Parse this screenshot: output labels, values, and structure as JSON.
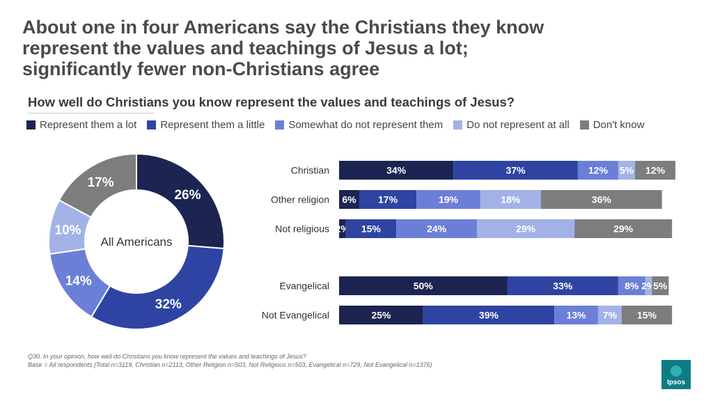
{
  "headline": {
    "line1": "About one in four Americans say the Christians they know",
    "line2": "represent the values and teachings of Jesus a lot;",
    "line3": "significantly fewer non-Christians agree"
  },
  "subtitle": "How well do Christians you know represent the values and teachings of Jesus?",
  "colors": {
    "a_lot": "#1c2452",
    "a_little": "#2f44a2",
    "somewhat_not": "#6b7fd7",
    "not_at_all": "#a3b2e6",
    "dont_know": "#7d7d7d"
  },
  "chart_data": [
    {
      "type": "pie",
      "title": "All Americans",
      "categories": [
        "Represent them a lot",
        "Represent them a little",
        "Somewhat do not represent them",
        "Do not represent at all",
        "Don't know"
      ],
      "values": [
        26,
        32,
        14,
        10,
        17
      ],
      "value_labels": [
        "26%",
        "32%",
        "14%",
        "10%",
        "17%"
      ],
      "legend": "top"
    },
    {
      "type": "bar",
      "orientation": "horizontal",
      "stacked": true,
      "categories": [
        "Christian",
        "Other religion",
        "Not religious",
        "Evangelical",
        "Not Evangelical"
      ],
      "series": [
        {
          "name": "Represent them a lot",
          "values": [
            34,
            6,
            2,
            50,
            25
          ],
          "labels": [
            "34%",
            "6%",
            "2%",
            "50%",
            "25%"
          ]
        },
        {
          "name": "Represent them a little",
          "values": [
            37,
            17,
            15,
            33,
            39
          ],
          "labels": [
            "37%",
            "17%",
            "15%",
            "33%",
            "39%"
          ]
        },
        {
          "name": "Somewhat do not represent them",
          "values": [
            12,
            19,
            24,
            8,
            13
          ],
          "labels": [
            "12%",
            "19%",
            "24%",
            "8%",
            "13%"
          ]
        },
        {
          "name": "Do not represent at all",
          "values": [
            5,
            18,
            29,
            2,
            7
          ],
          "labels": [
            "5%",
            "18%",
            "29%",
            "2%",
            "7%"
          ]
        },
        {
          "name": "Don't know",
          "values": [
            12,
            36,
            29,
            5,
            15
          ],
          "labels": [
            "12%",
            "36%",
            "29%",
            "5%",
            "15%"
          ]
        }
      ],
      "xlim": [
        0,
        100
      ]
    }
  ],
  "footnote": {
    "question": "Q30. In your opinion, how well do Christians you know represent the values and teachings of Jesus?",
    "base": "Base =  All respondents (Total n=3119, Christian n=2113, Other Religion n=503, Not Religious n=503, Evangelical n=729, Not Evangelical n=1376)"
  },
  "logo": {
    "text": "Ipsos"
  }
}
